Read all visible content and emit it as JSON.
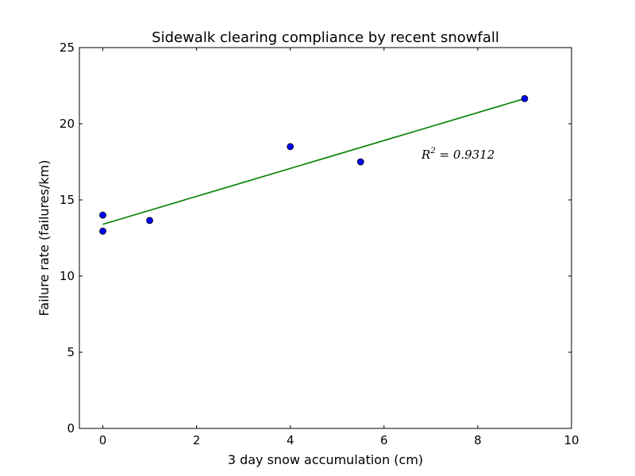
{
  "chart_data": {
    "type": "scatter",
    "title": "Sidewalk clearing compliance by recent snowfall",
    "xlabel": "3 day snow accumulation (cm)",
    "ylabel": "Failure rate (failures/km)",
    "xlim": [
      -0.5,
      10
    ],
    "ylim": [
      0,
      25
    ],
    "xticks": [
      0,
      2,
      4,
      6,
      8,
      10
    ],
    "yticks": [
      0,
      5,
      10,
      15,
      20,
      25
    ],
    "grid": false,
    "series": [
      {
        "kind": "points",
        "color": "#0000ff",
        "x": [
          0,
          0,
          1,
          4,
          5.5,
          9
        ],
        "y": [
          14.0,
          12.95,
          13.65,
          18.5,
          17.5,
          21.65
        ]
      },
      {
        "kind": "fit-line",
        "color": "#008000",
        "x": [
          0,
          9
        ],
        "y": [
          13.4,
          21.65
        ]
      }
    ],
    "annotation": {
      "base": "R",
      "sup": "2",
      "rest": " = 0.9312",
      "x": 6.8,
      "y": 17.7
    }
  }
}
